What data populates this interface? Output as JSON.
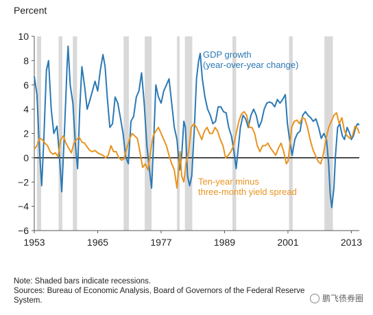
{
  "chart_data": {
    "type": "line",
    "ylabel": "Percent",
    "xlim": [
      1953,
      2014.5
    ],
    "ylim": [
      -6,
      10
    ],
    "yticks": [
      -6,
      -4,
      -2,
      0,
      2,
      4,
      6,
      8,
      10
    ],
    "xticks": [
      1953,
      1965,
      1977,
      1989,
      2001,
      2013
    ],
    "ytick_labels": [
      "−6",
      "−4",
      "−2",
      "0",
      "2",
      "4",
      "6",
      "8",
      "10"
    ],
    "xtick_labels": [
      "1953",
      "1965",
      "1977",
      "1989",
      "2001",
      "2013"
    ],
    "grid": false,
    "recessions": [
      [
        1953.5,
        1954.3
      ],
      [
        1957.6,
        1958.3
      ],
      [
        1960.3,
        1961.1
      ],
      [
        1969.9,
        1970.9
      ],
      [
        1973.9,
        1975.2
      ],
      [
        1980.0,
        1980.5
      ],
      [
        1981.5,
        1982.9
      ],
      [
        1990.5,
        1991.2
      ],
      [
        2001.2,
        2001.9
      ],
      [
        2007.9,
        2009.5
      ]
    ],
    "series": [
      {
        "name": "GDP growth (year-over-year change)",
        "color": "#2a78b4",
        "points": [
          [
            1953,
            6.7
          ],
          [
            1953.5,
            5.2
          ],
          [
            1954,
            0.5
          ],
          [
            1954.4,
            -2.3
          ],
          [
            1954.8,
            1.5
          ],
          [
            1955.3,
            7.2
          ],
          [
            1955.7,
            8.0
          ],
          [
            1956.2,
            4.0
          ],
          [
            1956.7,
            2.0
          ],
          [
            1957.3,
            2.6
          ],
          [
            1957.7,
            0.5
          ],
          [
            1958.2,
            -2.8
          ],
          [
            1958.7,
            2.0
          ],
          [
            1959.2,
            7.5
          ],
          [
            1959.4,
            9.2
          ],
          [
            1959.8,
            6.0
          ],
          [
            1960.3,
            4.5
          ],
          [
            1960.8,
            1.0
          ],
          [
            1961.2,
            -0.9
          ],
          [
            1961.6,
            4.0
          ],
          [
            1962.0,
            7.5
          ],
          [
            1962.5,
            6.0
          ],
          [
            1963.0,
            4.0
          ],
          [
            1963.5,
            4.7
          ],
          [
            1964.0,
            5.5
          ],
          [
            1964.5,
            6.3
          ],
          [
            1965.0,
            5.5
          ],
          [
            1965.5,
            7.2
          ],
          [
            1966.0,
            8.5
          ],
          [
            1966.4,
            7.5
          ],
          [
            1966.8,
            5.0
          ],
          [
            1967.3,
            2.5
          ],
          [
            1967.8,
            2.8
          ],
          [
            1968.3,
            5.0
          ],
          [
            1968.8,
            4.5
          ],
          [
            1969.3,
            3.3
          ],
          [
            1969.8,
            2.0
          ],
          [
            1970.3,
            0.1
          ],
          [
            1970.8,
            -0.5
          ],
          [
            1971.3,
            3.0
          ],
          [
            1971.8,
            3.4
          ],
          [
            1972.3,
            5.0
          ],
          [
            1972.8,
            5.5
          ],
          [
            1973.3,
            7.0
          ],
          [
            1973.8,
            4.5
          ],
          [
            1974.3,
            1.0
          ],
          [
            1974.8,
            -1.0
          ],
          [
            1975.2,
            -2.5
          ],
          [
            1975.6,
            1.5
          ],
          [
            1976.0,
            6.0
          ],
          [
            1976.5,
            5.0
          ],
          [
            1977.0,
            4.5
          ],
          [
            1977.5,
            5.5
          ],
          [
            1978.0,
            6.0
          ],
          [
            1978.5,
            6.5
          ],
          [
            1979.0,
            4.5
          ],
          [
            1979.5,
            2.5
          ],
          [
            1980.0,
            1.5
          ],
          [
            1980.5,
            -1.0
          ],
          [
            1980.9,
            0.2
          ],
          [
            1981.3,
            3.0
          ],
          [
            1981.6,
            2.5
          ],
          [
            1982.0,
            -1.5
          ],
          [
            1982.4,
            -2.3
          ],
          [
            1982.8,
            -1.5
          ],
          [
            1983.3,
            2.5
          ],
          [
            1983.7,
            6.5
          ],
          [
            1984.1,
            8.0
          ],
          [
            1984.4,
            8.6
          ],
          [
            1984.8,
            6.5
          ],
          [
            1985.3,
            5.0
          ],
          [
            1985.8,
            4.0
          ],
          [
            1986.3,
            3.5
          ],
          [
            1986.8,
            2.8
          ],
          [
            1987.3,
            3.0
          ],
          [
            1987.8,
            4.2
          ],
          [
            1988.3,
            4.2
          ],
          [
            1988.8,
            3.8
          ],
          [
            1989.3,
            3.7
          ],
          [
            1989.8,
            2.5
          ],
          [
            1990.3,
            1.8
          ],
          [
            1990.8,
            0.5
          ],
          [
            1991.2,
            -0.9
          ],
          [
            1991.6,
            0.8
          ],
          [
            1992.0,
            2.5
          ],
          [
            1992.5,
            3.5
          ],
          [
            1993.0,
            3.2
          ],
          [
            1993.5,
            2.5
          ],
          [
            1994.0,
            3.5
          ],
          [
            1994.5,
            4.0
          ],
          [
            1995.0,
            3.5
          ],
          [
            1995.5,
            2.5
          ],
          [
            1996.0,
            3.0
          ],
          [
            1996.5,
            4.0
          ],
          [
            1997.0,
            4.5
          ],
          [
            1997.5,
            4.6
          ],
          [
            1998.0,
            4.5
          ],
          [
            1998.5,
            4.2
          ],
          [
            1999.0,
            4.8
          ],
          [
            1999.5,
            4.5
          ],
          [
            2000.0,
            4.8
          ],
          [
            2000.5,
            5.2
          ],
          [
            2000.9,
            2.8
          ],
          [
            2001.3,
            1.5
          ],
          [
            2001.8,
            0.2
          ],
          [
            2002.3,
            1.5
          ],
          [
            2002.8,
            2.0
          ],
          [
            2003.3,
            2.2
          ],
          [
            2003.8,
            3.5
          ],
          [
            2004.3,
            3.8
          ],
          [
            2004.8,
            3.5
          ],
          [
            2005.3,
            3.3
          ],
          [
            2005.8,
            3.0
          ],
          [
            2006.3,
            3.2
          ],
          [
            2006.8,
            2.5
          ],
          [
            2007.3,
            1.6
          ],
          [
            2007.8,
            2.0
          ],
          [
            2008.3,
            1.5
          ],
          [
            2008.7,
            -0.5
          ],
          [
            2009.0,
            -3.0
          ],
          [
            2009.3,
            -4.1
          ],
          [
            2009.7,
            -2.5
          ],
          [
            2010.0,
            0.2
          ],
          [
            2010.4,
            2.5
          ],
          [
            2010.8,
            2.8
          ],
          [
            2011.3,
            1.8
          ],
          [
            2011.7,
            1.5
          ],
          [
            2012.2,
            2.5
          ],
          [
            2012.7,
            2.0
          ],
          [
            2013.0,
            1.5
          ],
          [
            2013.4,
            1.8
          ],
          [
            2013.8,
            2.5
          ],
          [
            2014.2,
            2.8
          ],
          [
            2014.5,
            2.7
          ]
        ]
      },
      {
        "name": "Ten-year minus three-month yield spread",
        "color": "#e8931e",
        "points": [
          [
            1953,
            0.7
          ],
          [
            1953.5,
            1.0
          ],
          [
            1954,
            1.6
          ],
          [
            1954.5,
            1.5
          ],
          [
            1955,
            1.2
          ],
          [
            1955.5,
            1.0
          ],
          [
            1956,
            0.5
          ],
          [
            1956.5,
            0.3
          ],
          [
            1957,
            0.4
          ],
          [
            1957.5,
            0.1
          ],
          [
            1958,
            1.5
          ],
          [
            1958.5,
            1.8
          ],
          [
            1959,
            1.2
          ],
          [
            1959.5,
            0.8
          ],
          [
            1960,
            0.4
          ],
          [
            1960.5,
            1.2
          ],
          [
            1961,
            1.5
          ],
          [
            1961.5,
            1.7
          ],
          [
            1962,
            1.3
          ],
          [
            1962.5,
            1.2
          ],
          [
            1963,
            0.9
          ],
          [
            1963.5,
            0.6
          ],
          [
            1964,
            0.5
          ],
          [
            1964.5,
            0.6
          ],
          [
            1965,
            0.4
          ],
          [
            1965.5,
            0.3
          ],
          [
            1966,
            0.2
          ],
          [
            1966.5,
            0.0
          ],
          [
            1967,
            0.2
          ],
          [
            1967.5,
            1.0
          ],
          [
            1968,
            0.5
          ],
          [
            1968.5,
            0.5
          ],
          [
            1969,
            0.0
          ],
          [
            1969.5,
            -0.2
          ],
          [
            1970,
            -0.1
          ],
          [
            1970.5,
            0.8
          ],
          [
            1971,
            1.5
          ],
          [
            1971.5,
            2.0
          ],
          [
            1972,
            1.8
          ],
          [
            1972.5,
            1.6
          ],
          [
            1973,
            0.5
          ],
          [
            1973.5,
            -0.8
          ],
          [
            1974,
            -0.5
          ],
          [
            1974.5,
            -1.0
          ],
          [
            1975,
            0.5
          ],
          [
            1975.5,
            1.8
          ],
          [
            1976,
            2.2
          ],
          [
            1976.5,
            2.5
          ],
          [
            1977,
            2.0
          ],
          [
            1977.5,
            1.5
          ],
          [
            1978,
            1.0
          ],
          [
            1978.5,
            0.2
          ],
          [
            1979,
            -0.5
          ],
          [
            1979.5,
            -1.0
          ],
          [
            1980,
            -2.5
          ],
          [
            1980.3,
            -1.0
          ],
          [
            1980.6,
            0.5
          ],
          [
            1980.9,
            -1.5
          ],
          [
            1981.3,
            -2.0
          ],
          [
            1981.7,
            -0.5
          ],
          [
            1982.2,
            0.5
          ],
          [
            1982.7,
            2.5
          ],
          [
            1983.2,
            2.8
          ],
          [
            1983.7,
            2.5
          ],
          [
            1984.2,
            2.0
          ],
          [
            1984.7,
            1.5
          ],
          [
            1985.2,
            2.2
          ],
          [
            1985.7,
            2.5
          ],
          [
            1986.2,
            2.0
          ],
          [
            1986.7,
            2.0
          ],
          [
            1987.2,
            2.5
          ],
          [
            1987.7,
            2.2
          ],
          [
            1988.2,
            1.5
          ],
          [
            1988.7,
            1.0
          ],
          [
            1989.2,
            0.0
          ],
          [
            1989.7,
            0.2
          ],
          [
            1990.2,
            0.5
          ],
          [
            1990.7,
            1.0
          ],
          [
            1991.2,
            2.0
          ],
          [
            1991.7,
            3.0
          ],
          [
            1992.2,
            3.6
          ],
          [
            1992.7,
            3.8
          ],
          [
            1993.2,
            3.5
          ],
          [
            1993.7,
            2.5
          ],
          [
            1994.2,
            2.5
          ],
          [
            1994.7,
            2.0
          ],
          [
            1995.2,
            1.0
          ],
          [
            1995.7,
            0.5
          ],
          [
            1996.2,
            1.0
          ],
          [
            1996.7,
            1.0
          ],
          [
            1997.2,
            1.2
          ],
          [
            1997.7,
            0.8
          ],
          [
            1998.2,
            0.5
          ],
          [
            1998.7,
            0.2
          ],
          [
            1999.2,
            0.8
          ],
          [
            1999.7,
            1.2
          ],
          [
            2000.2,
            0.5
          ],
          [
            2000.7,
            -0.5
          ],
          [
            2001.0,
            -0.3
          ],
          [
            2001.3,
            0.8
          ],
          [
            2001.7,
            2.5
          ],
          [
            2002.2,
            3.0
          ],
          [
            2002.7,
            3.1
          ],
          [
            2003.2,
            2.8
          ],
          [
            2003.7,
            3.3
          ],
          [
            2004.2,
            3.2
          ],
          [
            2004.7,
            2.5
          ],
          [
            2005.2,
            1.5
          ],
          [
            2005.7,
            0.7
          ],
          [
            2006.2,
            0.2
          ],
          [
            2006.7,
            -0.3
          ],
          [
            2007.2,
            -0.5
          ],
          [
            2007.7,
            0.3
          ],
          [
            2008.2,
            1.5
          ],
          [
            2008.7,
            2.5
          ],
          [
            2009.2,
            3.0
          ],
          [
            2009.7,
            3.5
          ],
          [
            2010.2,
            3.7
          ],
          [
            2010.7,
            2.8
          ],
          [
            2011.2,
            3.3
          ],
          [
            2011.7,
            2.2
          ],
          [
            2012.2,
            1.8
          ],
          [
            2012.7,
            1.6
          ],
          [
            2013.2,
            1.8
          ],
          [
            2013.7,
            2.6
          ],
          [
            2014.2,
            2.4
          ],
          [
            2014.5,
            2.0
          ]
        ]
      }
    ]
  },
  "labels": {
    "gdp_line1": "GDP growth",
    "gdp_line2": "(year-over-year change)",
    "spread_line1": "Ten-year minus",
    "spread_line2": "three-month yield spread"
  },
  "notes": {
    "line1": "Note: Shaded bars indicate recessions.",
    "line2": "Sources: Bureau of Economic Analysis, Board of Governors of the Federal Reserve",
    "line3": "System."
  },
  "watermark": {
    "text": "鹏飞债券圈",
    "icon": "wechat-icon"
  }
}
